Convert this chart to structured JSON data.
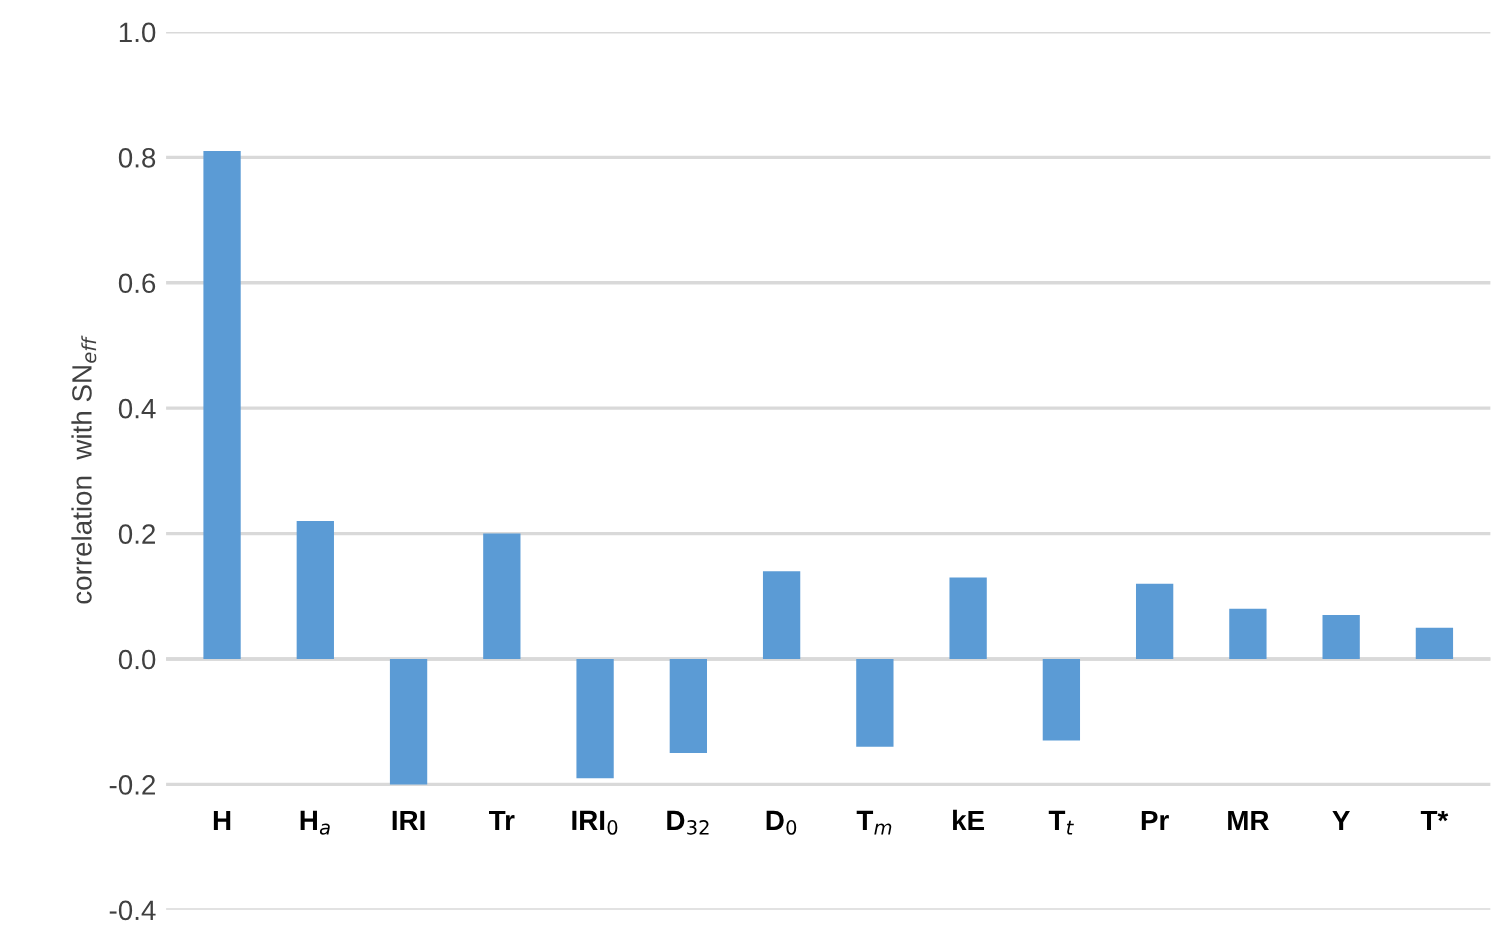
{
  "chart_data": {
    "type": "bar",
    "ylabel": "correlation  with SN$_{eff}$",
    "categories": [
      "H",
      "H$_{a}$",
      "IRI",
      "Tr",
      "IRI$_{0}$",
      "D$_{32}$",
      "D$_{0}$",
      "T$_{m}$",
      "kE",
      "T$_{t}$",
      "Pr",
      "MR",
      "Y",
      "T*"
    ],
    "values": [
      0.81,
      0.22,
      -0.2,
      0.2,
      -0.19,
      -0.15,
      0.14,
      -0.14,
      0.13,
      -0.13,
      0.12,
      0.08,
      0.07,
      0.05
    ],
    "color": "#5b9bd5",
    "ylim": [
      -0.4,
      1.0
    ],
    "yticks": [
      {
        "value": -0.4,
        "label": "-0.4"
      },
      {
        "value": -0.2,
        "label": "-0.2"
      },
      {
        "value": 0.0,
        "label": "0.0"
      },
      {
        "value": 0.2,
        "label": "0.2"
      },
      {
        "value": 0.4,
        "label": "0.4"
      },
      {
        "value": 0.6,
        "label": "0.6"
      },
      {
        "value": 0.8,
        "label": "0.8"
      },
      {
        "value": 1.0,
        "label": "1.0"
      }
    ],
    "grid": "y"
  }
}
